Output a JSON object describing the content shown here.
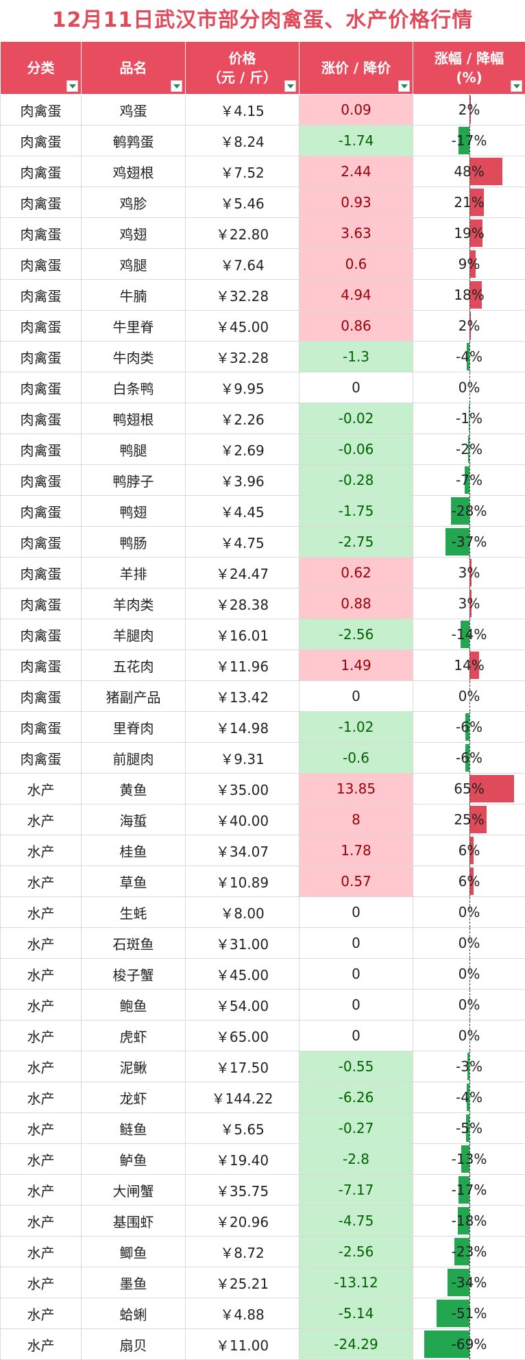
{
  "title": "12月11日武汉市部分肉禽蛋、水产价格行情",
  "headers": {
    "category": "分类",
    "name": "品名",
    "price_line1": "价格",
    "price_line2": "（元 / 斤）",
    "change": "涨价 / 降价",
    "pct_line1": "涨幅 / 降幅",
    "pct_line2": "(%)"
  },
  "colors": {
    "header_bg": "#e84c5f",
    "title": "#e04b5c",
    "up_fill": "#ffc7ce",
    "up_text": "#9c0006",
    "down_fill": "#c6efce",
    "down_text": "#006100",
    "bar_up": "#e04b5c",
    "bar_down": "#22a750"
  },
  "icons": {
    "filter": "filter-dropdown-icon"
  },
  "rows": [
    {
      "category": "肉禽蛋",
      "name": "鸡蛋",
      "price": "￥4.15",
      "change": "0.09",
      "pct": "2%",
      "pct_value": 2
    },
    {
      "category": "肉禽蛋",
      "name": "鹌鹑蛋",
      "price": "￥8.24",
      "change": "-1.74",
      "pct": "-17%",
      "pct_value": -17
    },
    {
      "category": "肉禽蛋",
      "name": "鸡翅根",
      "price": "￥7.52",
      "change": "2.44",
      "pct": "48%",
      "pct_value": 48
    },
    {
      "category": "肉禽蛋",
      "name": "鸡胗",
      "price": "￥5.46",
      "change": "0.93",
      "pct": "21%",
      "pct_value": 21
    },
    {
      "category": "肉禽蛋",
      "name": "鸡翅",
      "price": "￥22.80",
      "change": "3.63",
      "pct": "19%",
      "pct_value": 19
    },
    {
      "category": "肉禽蛋",
      "name": "鸡腿",
      "price": "￥7.64",
      "change": "0.6",
      "pct": "9%",
      "pct_value": 9
    },
    {
      "category": "肉禽蛋",
      "name": "牛腩",
      "price": "￥32.28",
      "change": "4.94",
      "pct": "18%",
      "pct_value": 18
    },
    {
      "category": "肉禽蛋",
      "name": "牛里脊",
      "price": "￥45.00",
      "change": "0.86",
      "pct": "2%",
      "pct_value": 2
    },
    {
      "category": "肉禽蛋",
      "name": "牛肉类",
      "price": "￥32.28",
      "change": "-1.3",
      "pct": "-4%",
      "pct_value": -4
    },
    {
      "category": "肉禽蛋",
      "name": "白条鸭",
      "price": "￥9.95",
      "change": "0",
      "pct": "0%",
      "pct_value": 0
    },
    {
      "category": "肉禽蛋",
      "name": "鸭翅根",
      "price": "￥2.26",
      "change": "-0.02",
      "pct": "-1%",
      "pct_value": -1
    },
    {
      "category": "肉禽蛋",
      "name": "鸭腿",
      "price": "￥2.69",
      "change": "-0.06",
      "pct": "-2%",
      "pct_value": -2
    },
    {
      "category": "肉禽蛋",
      "name": "鸭脖子",
      "price": "￥3.96",
      "change": "-0.28",
      "pct": "-7%",
      "pct_value": -7
    },
    {
      "category": "肉禽蛋",
      "name": "鸭翅",
      "price": "￥4.45",
      "change": "-1.75",
      "pct": "-28%",
      "pct_value": -28
    },
    {
      "category": "肉禽蛋",
      "name": "鸭肠",
      "price": "￥4.75",
      "change": "-2.75",
      "pct": "-37%",
      "pct_value": -37
    },
    {
      "category": "肉禽蛋",
      "name": "羊排",
      "price": "￥24.47",
      "change": "0.62",
      "pct": "3%",
      "pct_value": 3
    },
    {
      "category": "肉禽蛋",
      "name": "羊肉类",
      "price": "￥28.38",
      "change": "0.88",
      "pct": "3%",
      "pct_value": 3
    },
    {
      "category": "肉禽蛋",
      "name": "羊腿肉",
      "price": "￥16.01",
      "change": "-2.56",
      "pct": "-14%",
      "pct_value": -14
    },
    {
      "category": "肉禽蛋",
      "name": "五花肉",
      "price": "￥11.96",
      "change": "1.49",
      "pct": "14%",
      "pct_value": 14
    },
    {
      "category": "肉禽蛋",
      "name": "猪副产品",
      "price": "￥13.42",
      "change": "0",
      "pct": "0%",
      "pct_value": 0
    },
    {
      "category": "肉禽蛋",
      "name": "里脊肉",
      "price": "￥14.98",
      "change": "-1.02",
      "pct": "-6%",
      "pct_value": -6
    },
    {
      "category": "肉禽蛋",
      "name": "前腿肉",
      "price": "￥9.31",
      "change": "-0.6",
      "pct": "-6%",
      "pct_value": -6
    },
    {
      "category": "水产",
      "name": "黄鱼",
      "price": "￥35.00",
      "change": "13.85",
      "pct": "65%",
      "pct_value": 65
    },
    {
      "category": "水产",
      "name": "海蜇",
      "price": "￥40.00",
      "change": "8",
      "pct": "25%",
      "pct_value": 25
    },
    {
      "category": "水产",
      "name": "桂鱼",
      "price": "￥34.07",
      "change": "1.78",
      "pct": "6%",
      "pct_value": 6
    },
    {
      "category": "水产",
      "name": "草鱼",
      "price": "￥10.89",
      "change": "0.57",
      "pct": "6%",
      "pct_value": 6
    },
    {
      "category": "水产",
      "name": "生蚝",
      "price": "￥8.00",
      "change": "0",
      "pct": "0%",
      "pct_value": 0
    },
    {
      "category": "水产",
      "name": "石斑鱼",
      "price": "￥31.00",
      "change": "0",
      "pct": "0%",
      "pct_value": 0
    },
    {
      "category": "水产",
      "name": "梭子蟹",
      "price": "￥45.00",
      "change": "0",
      "pct": "0%",
      "pct_value": 0
    },
    {
      "category": "水产",
      "name": "鲍鱼",
      "price": "￥54.00",
      "change": "0",
      "pct": "0%",
      "pct_value": 0
    },
    {
      "category": "水产",
      "name": "虎虾",
      "price": "￥65.00",
      "change": "0",
      "pct": "0%",
      "pct_value": 0
    },
    {
      "category": "水产",
      "name": "泥鳅",
      "price": "￥17.50",
      "change": "-0.55",
      "pct": "-3%",
      "pct_value": -3
    },
    {
      "category": "水产",
      "name": "龙虾",
      "price": "￥144.22",
      "change": "-6.26",
      "pct": "-4%",
      "pct_value": -4
    },
    {
      "category": "水产",
      "name": "鲢鱼",
      "price": "￥5.65",
      "change": "-0.27",
      "pct": "-5%",
      "pct_value": -5
    },
    {
      "category": "水产",
      "name": "鲈鱼",
      "price": "￥19.40",
      "change": "-2.8",
      "pct": "-13%",
      "pct_value": -13
    },
    {
      "category": "水产",
      "name": "大闸蟹",
      "price": "￥35.75",
      "change": "-7.17",
      "pct": "-17%",
      "pct_value": -17
    },
    {
      "category": "水产",
      "name": "基围虾",
      "price": "￥20.96",
      "change": "-4.75",
      "pct": "-18%",
      "pct_value": -18
    },
    {
      "category": "水产",
      "name": "鲫鱼",
      "price": "￥8.72",
      "change": "-2.56",
      "pct": "-23%",
      "pct_value": -23
    },
    {
      "category": "水产",
      "name": "墨鱼",
      "price": "￥25.21",
      "change": "-13.12",
      "pct": "-34%",
      "pct_value": -34
    },
    {
      "category": "水产",
      "name": "蛤蜊",
      "price": "￥4.88",
      "change": "-5.14",
      "pct": "-51%",
      "pct_value": -51
    },
    {
      "category": "水产",
      "name": "扇贝",
      "price": "￥11.00",
      "change": "-24.29",
      "pct": "-69%",
      "pct_value": -69
    }
  ]
}
